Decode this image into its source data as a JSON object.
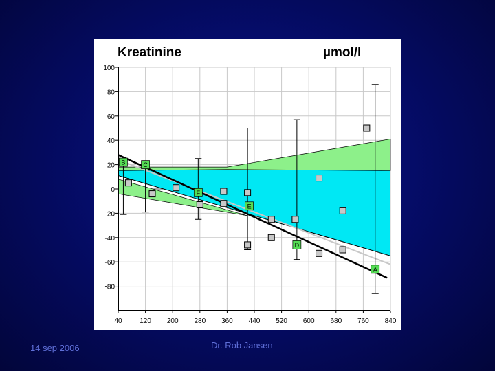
{
  "footer": {
    "date": "14 sep 2006",
    "author": "Dr. Rob Jansen"
  },
  "chart_data": {
    "type": "scatter",
    "title": "Kreatinine",
    "unit": "µmol/l",
    "xlim": [
      40,
      840
    ],
    "ylim": [
      -100,
      100
    ],
    "x_ticks": [
      40,
      120,
      200,
      280,
      360,
      440,
      520,
      600,
      680,
      760,
      840
    ],
    "y_ticks": [
      100,
      80,
      60,
      40,
      20,
      0,
      -20,
      -40,
      -60,
      -80
    ],
    "grid": true,
    "colors": {
      "cyan_band": "#00e8f4",
      "green_band": "#8df08a",
      "label_box": "#55dd55",
      "marker": "#c8c8c8"
    },
    "regression_line": [
      [
        40,
        28
      ],
      [
        830,
        -73
      ]
    ],
    "band_lines": {
      "cyan_upper": [
        [
          40,
          18
        ],
        [
          840,
          15
        ]
      ],
      "cyan_lower": [
        [
          40,
          11
        ],
        [
          840,
          -55
        ]
      ],
      "green_upper": [
        [
          40,
          18
        ],
        [
          360,
          18
        ],
        [
          840,
          41
        ]
      ],
      "green_lower": [
        [
          40,
          15
        ],
        [
          360,
          16
        ],
        [
          840,
          15
        ]
      ],
      "green_left_upper": [
        [
          40,
          8
        ],
        [
          420,
          -22
        ]
      ],
      "green_left_lower": [
        [
          40,
          -4
        ],
        [
          420,
          -22
        ]
      ],
      "gray_line": [
        [
          40,
          24
        ],
        [
          840,
          -62
        ]
      ]
    },
    "points": [
      {
        "x": 70,
        "y": 5
      },
      {
        "x": 140,
        "y": -4
      },
      {
        "x": 210,
        "y": 1
      },
      {
        "x": 280,
        "y": -13
      },
      {
        "x": 350,
        "y": -2
      },
      {
        "x": 350,
        "y": -12
      },
      {
        "x": 420,
        "y": -3
      },
      {
        "x": 420,
        "y": -46
      },
      {
        "x": 490,
        "y": -25
      },
      {
        "x": 490,
        "y": -40
      },
      {
        "x": 560,
        "y": -25
      },
      {
        "x": 630,
        "y": 9
      },
      {
        "x": 630,
        "y": -53
      },
      {
        "x": 700,
        "y": -18
      },
      {
        "x": 700,
        "y": -50
      },
      {
        "x": 770,
        "y": 50
      }
    ],
    "error_bars": [
      {
        "x": 55,
        "low": -21,
        "high": 21
      },
      {
        "x": 120,
        "low": -19,
        "high": 19
      },
      {
        "x": 275,
        "low": -25,
        "high": 25
      },
      {
        "x": 420,
        "low": -50,
        "high": 50
      },
      {
        "x": 565,
        "low": -58,
        "high": 57
      },
      {
        "x": 795,
        "low": -86,
        "high": 86
      }
    ],
    "labels": [
      {
        "x": 55,
        "y": 22,
        "text": "B"
      },
      {
        "x": 120,
        "y": 20,
        "text": "C"
      },
      {
        "x": 275,
        "y": -3,
        "text": "F"
      },
      {
        "x": 425,
        "y": -14,
        "text": "E"
      },
      {
        "x": 565,
        "y": -46,
        "text": "D"
      },
      {
        "x": 795,
        "y": -66,
        "text": "A"
      }
    ]
  }
}
